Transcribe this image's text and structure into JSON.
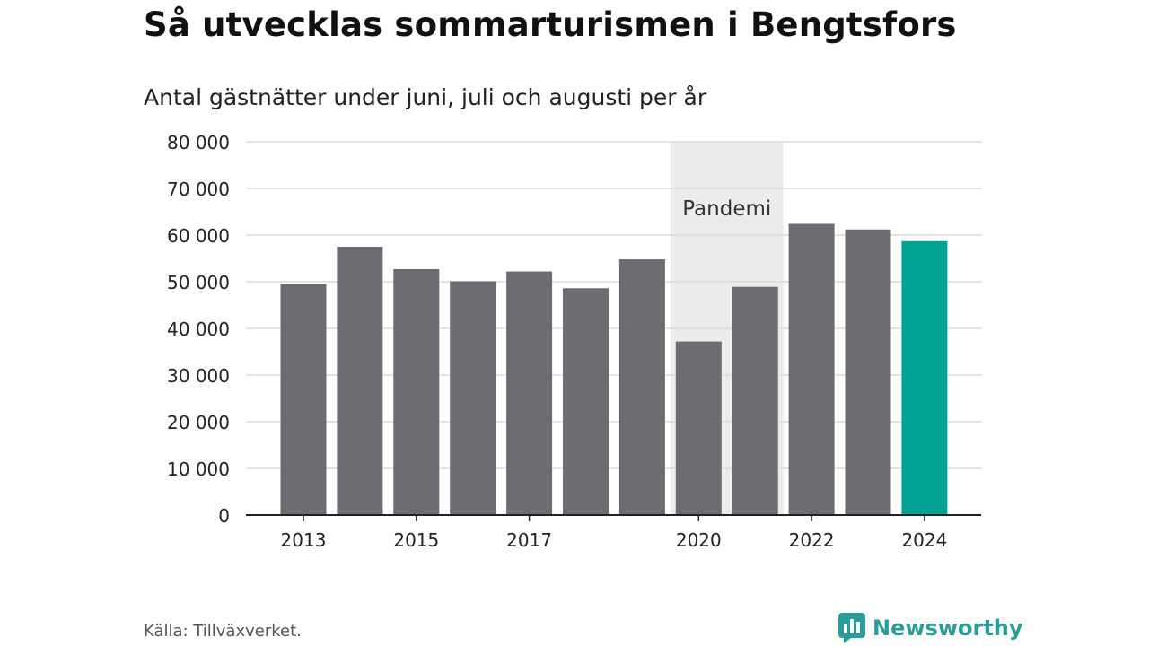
{
  "header": {
    "title": "Så utvecklas sommarturismen i Bengtsfors",
    "subtitle": "Antal gästnätter under juni, juli och augusti per år"
  },
  "footer": {
    "source": "Källa: Tillväxverket.",
    "brand": "Newsworthy",
    "brand_icon": "newsworthy-logo-icon"
  },
  "colors": {
    "bar": "#6c6c72",
    "highlight": "#00a396",
    "shade": "#ececec",
    "grid": "#dcdcdc",
    "axis": "#222222",
    "brand": "#2a9d98"
  },
  "chart_data": {
    "type": "bar",
    "x": [
      2013,
      2014,
      2015,
      2016,
      2017,
      2018,
      2019,
      2020,
      2021,
      2022,
      2023,
      2024
    ],
    "values": [
      49500,
      57500,
      52700,
      50100,
      52200,
      48600,
      54800,
      37200,
      48900,
      62400,
      61200,
      58700
    ],
    "highlight_index": 11,
    "x_tick_labels": [
      "2013",
      "2015",
      "2017",
      "2020",
      "2022",
      "2024"
    ],
    "x_tick_values": [
      2013,
      2015,
      2017,
      2020,
      2022,
      2024
    ],
    "y_tick_labels": [
      "0",
      "10 000",
      "20 000",
      "30 000",
      "40 000",
      "50 000",
      "60 000",
      "70 000",
      "80 000"
    ],
    "y_tick_values": [
      0,
      10000,
      20000,
      30000,
      40000,
      50000,
      60000,
      70000,
      80000
    ],
    "ylim": [
      0,
      80000
    ],
    "grid": true,
    "annotation": {
      "label": "Pandemi",
      "x_start": 2020,
      "x_end": 2021
    }
  }
}
